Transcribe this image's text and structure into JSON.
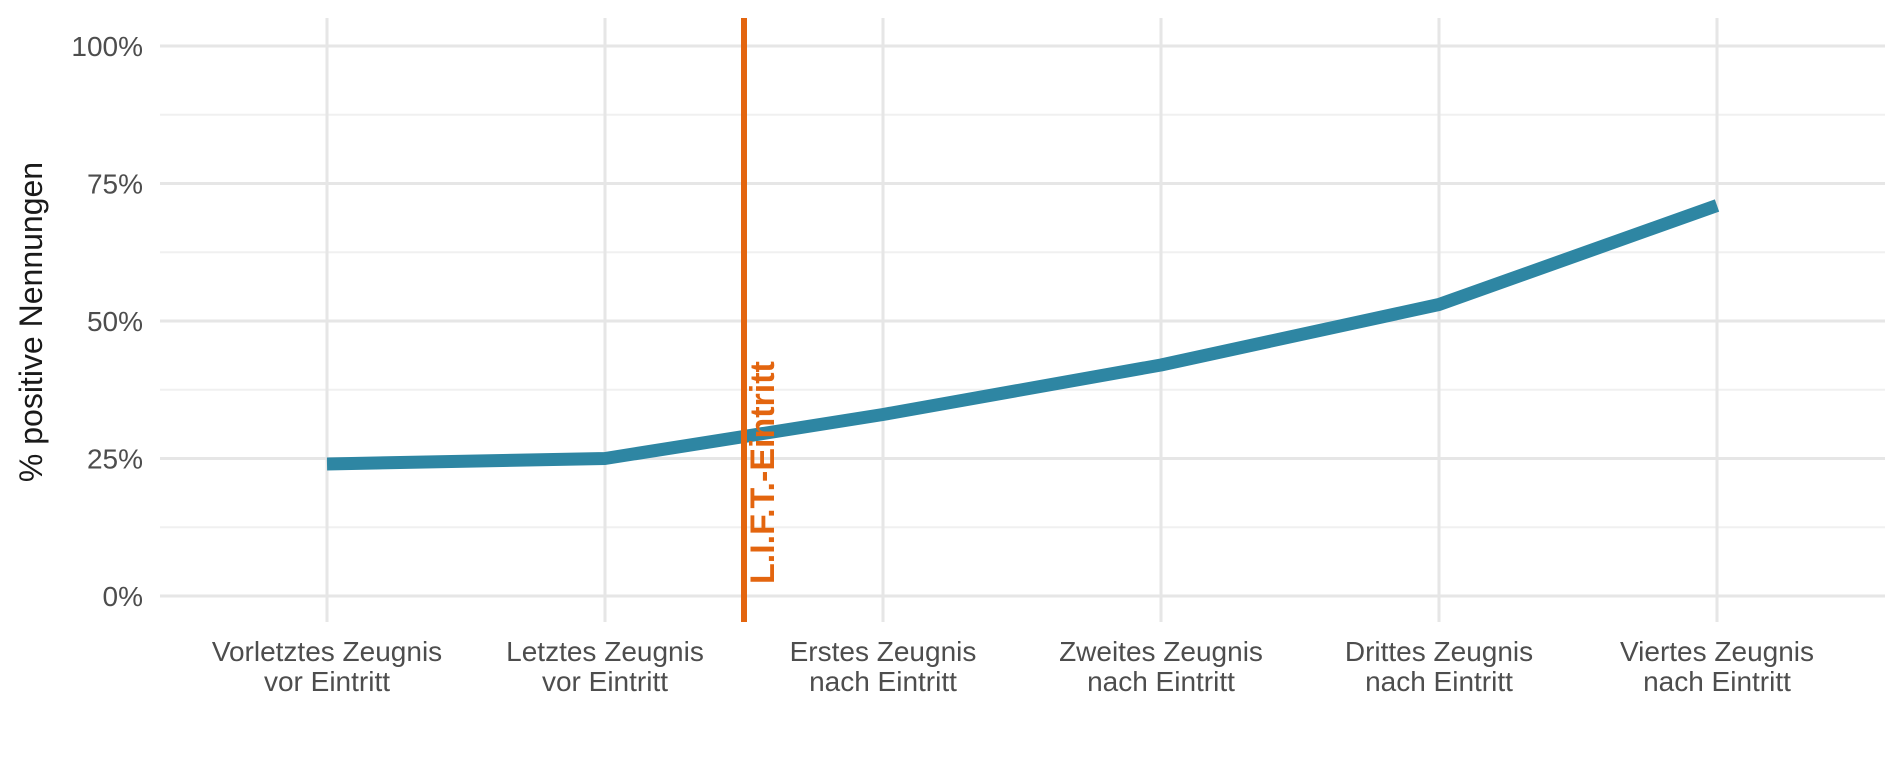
{
  "chart_data": {
    "type": "line",
    "title": "",
    "xlabel": "",
    "ylabel": "% positive Nennungen",
    "categories": [
      [
        "Vorletztes Zeugnis",
        "vor Eintritt"
      ],
      [
        "Letztes Zeugnis",
        "vor Eintritt"
      ],
      [
        "Erstes Zeugnis",
        "nach Eintritt"
      ],
      [
        "Zweites Zeugnis",
        "nach Eintritt"
      ],
      [
        "Drittes Zeugnis",
        "nach Eintritt"
      ],
      [
        "Viertes Zeugnis",
        "nach Eintritt"
      ]
    ],
    "series": [
      {
        "values": [
          0.24,
          0.25,
          0.33,
          0.42,
          0.53,
          0.71
        ],
        "color": "#2e86a3"
      }
    ],
    "ylim": [
      0,
      1
    ],
    "yticks": [
      0,
      0.25,
      0.5,
      0.75,
      1
    ],
    "ytick_labels": [
      "0%",
      "25%",
      "50%",
      "75%",
      "100%"
    ],
    "grid": true,
    "annotations": [
      {
        "type": "vline",
        "between": [
          "Letztes Zeugnis vor Eintritt",
          "Erstes Zeugnis nach Eintritt"
        ],
        "x_position": 1.5,
        "label": "L.I.F.T.-Eintritt",
        "color": "#e3650f"
      }
    ]
  }
}
